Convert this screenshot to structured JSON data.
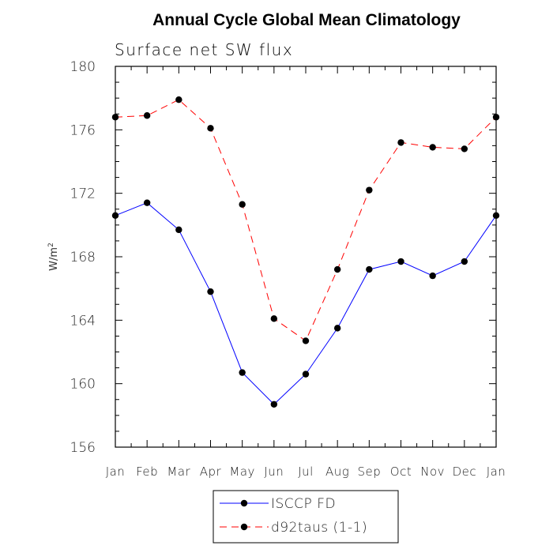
{
  "chart_data": {
    "type": "line",
    "title": "Annual Cycle Global Mean Climatology",
    "subtitle": "Surface net SW flux",
    "ylabel": "W/m",
    "ylabel_superscript": "2",
    "ylim": [
      156,
      180
    ],
    "yticks": [
      156,
      160,
      164,
      168,
      172,
      176,
      180
    ],
    "grid": false,
    "legend_position": "bottom-center",
    "categories": [
      "Jan",
      "Feb",
      "Mar",
      "Apr",
      "May",
      "Jun",
      "Jul",
      "Aug",
      "Sep",
      "Oct",
      "Nov",
      "Dec",
      "Jan"
    ],
    "series": [
      {
        "name": "ISCCP FD",
        "color": "#0000ff",
        "line_style": "solid",
        "marker": "filled-circle",
        "values": [
          170.6,
          171.4,
          169.7,
          165.8,
          160.7,
          158.7,
          160.6,
          163.5,
          167.2,
          167.7,
          166.8,
          167.7,
          170.6
        ]
      },
      {
        "name": "d92taus (1-1)",
        "color": "#ff0000",
        "line_style": "dashed",
        "marker": "filled-circle",
        "values": [
          176.8,
          176.9,
          177.9,
          176.1,
          171.3,
          164.1,
          162.7,
          167.2,
          172.2,
          175.2,
          174.9,
          174.8,
          176.8
        ]
      }
    ]
  }
}
